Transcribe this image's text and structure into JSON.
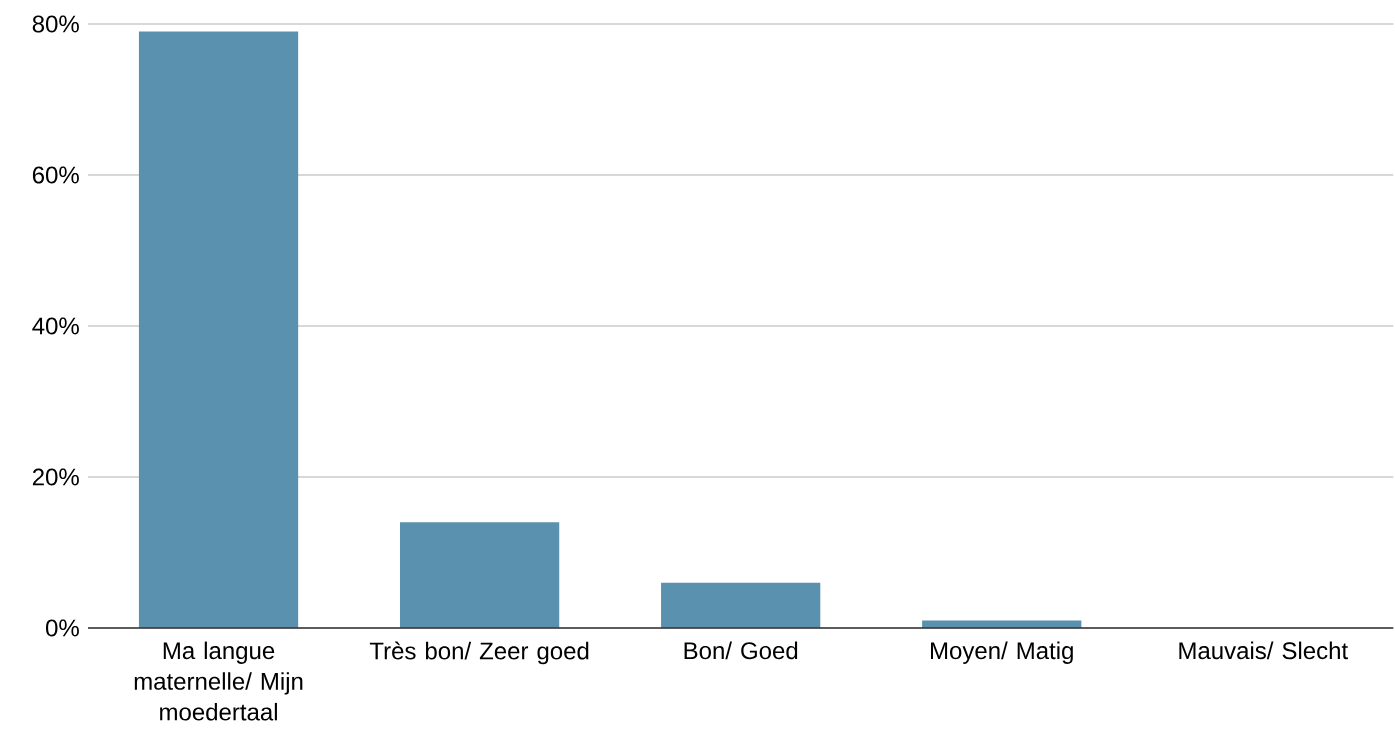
{
  "chart_data": {
    "type": "bar",
    "categories": [
      "Ma langue maternelle/ Mijn moedertaal",
      "Très bon/ Zeer goed",
      "Bon/ Goed",
      "Moyen/ Matig",
      "Mauvais/ Slecht"
    ],
    "values": [
      79,
      14,
      6,
      1,
      0
    ],
    "color": "#5a91ae",
    "ylim": [
      0,
      80
    ],
    "yticks": [
      {
        "value": 0,
        "label": "0%"
      },
      {
        "value": 20,
        "label": "20%"
      },
      {
        "value": 40,
        "label": "40%"
      },
      {
        "value": 60,
        "label": "60%"
      },
      {
        "value": 80,
        "label": "80%"
      }
    ],
    "grid": "y"
  }
}
